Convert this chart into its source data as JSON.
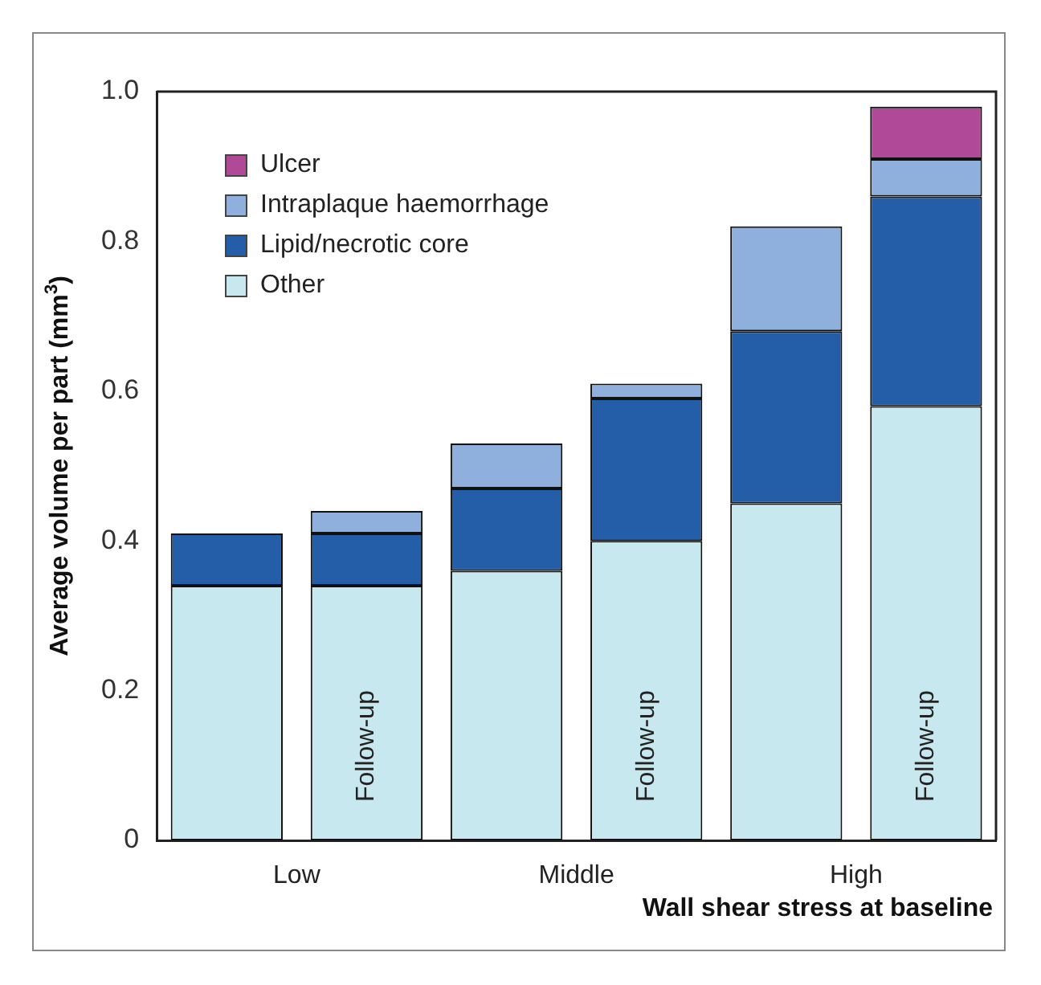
{
  "chart_data": {
    "type": "bar",
    "stacked": true,
    "xlabel": "Wall shear stress at baseline",
    "ylabel": "Average volume per part (mm$^{3}$)",
    "categories": [
      null,
      "Follow-up",
      null,
      "Follow-up",
      null,
      "Follow-up"
    ],
    "annotations": [
      "Low",
      "Middle",
      "High"
    ],
    "series": [
      {
        "name": "Other",
        "color": "#c8e8ef",
        "values": [
          0.34,
          0.34,
          0.36,
          0.4,
          0.45,
          0.58
        ]
      },
      {
        "name": "Lipid/necrotic core",
        "color": "#255ea8",
        "values": [
          0.07,
          0.07,
          0.11,
          0.19,
          0.23,
          0.28
        ]
      },
      {
        "name": "Intraplaque haemorrhage",
        "color": "#8fb0dc",
        "values": [
          null,
          0.03,
          0.06,
          0.02,
          0.14,
          0.05
        ]
      },
      {
        "name": "Ulcer",
        "color": "#b04a98",
        "values": [
          null,
          null,
          null,
          null,
          null,
          0.07
        ]
      }
    ],
    "ylim": [
      0,
      1
    ],
    "yticks": [
      0,
      0.2,
      0.4,
      0.6,
      0.8,
      {
        "value": 1,
        "label": "1.0"
      }
    ],
    "grid": false,
    "legend": "top left"
  }
}
